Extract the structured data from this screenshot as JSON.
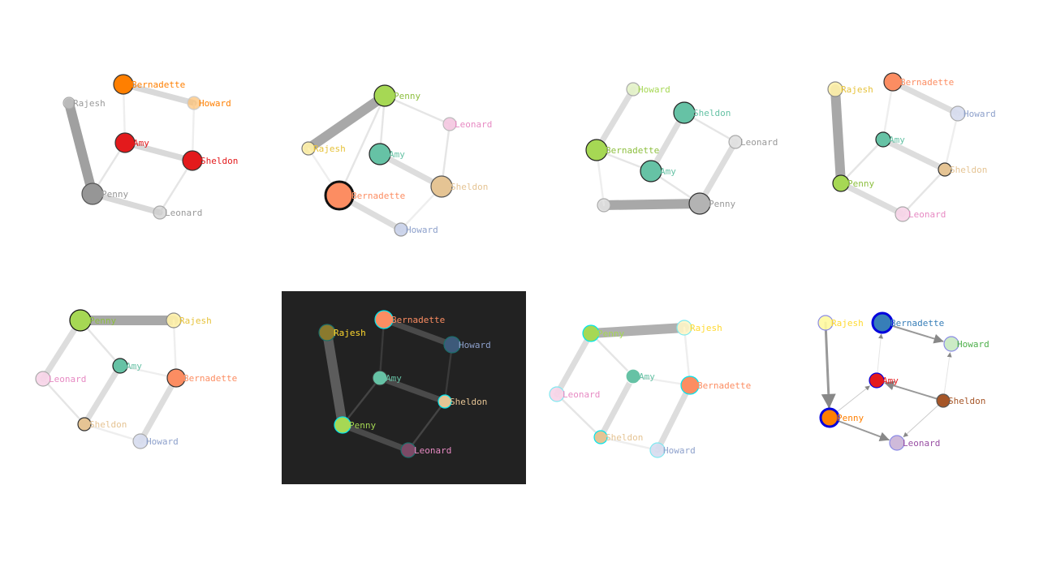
{
  "panels": [
    {
      "name": "panel-1",
      "background": "#ffffff",
      "nodes": [
        {
          "label": "Bernadette",
          "fill": "#ff7f00",
          "label_color": "#ff7f00",
          "opacity": 1.0,
          "stroke": "#333333"
        },
        {
          "label": "Rajesh",
          "fill": "#cccccc",
          "label_color": "#999999",
          "opacity": 0.6,
          "stroke": "#aaaaaa"
        },
        {
          "label": "Howard",
          "fill": "#fdbf6f",
          "label_color": "#ff7f00",
          "opacity": 0.7,
          "stroke": "#cccccc"
        },
        {
          "label": "Amy",
          "fill": "#e31a1c",
          "label_color": "#e31a1c",
          "opacity": 1.0,
          "stroke": "#333333"
        },
        {
          "label": "Sheldon",
          "fill": "#e31a1c",
          "label_color": "#e31a1c",
          "opacity": 1.0,
          "stroke": "#333333"
        },
        {
          "label": "Penny",
          "fill": "#969696",
          "label_color": "#969696",
          "opacity": 1.0,
          "stroke": "#555555"
        },
        {
          "label": "Leonard",
          "fill": "#cccccc",
          "label_color": "#999999",
          "opacity": 0.7,
          "stroke": "#aaaaaa"
        }
      ],
      "edges": [
        {
          "from": "Rajesh",
          "to": "Penny",
          "weight": 5,
          "color": "#a0a0a0"
        },
        {
          "from": "Bernadette",
          "to": "Howard",
          "weight": 3,
          "color": "#d9d9d9"
        },
        {
          "from": "Amy",
          "to": "Sheldon",
          "weight": 3,
          "color": "#d9d9d9"
        },
        {
          "from": "Penny",
          "to": "Leonard",
          "weight": 3,
          "color": "#d9d9d9"
        },
        {
          "from": "Amy",
          "to": "Penny",
          "weight": 1,
          "color": "#e5e5e5"
        },
        {
          "from": "Sheldon",
          "to": "Leonard",
          "weight": 1,
          "color": "#e5e5e5"
        },
        {
          "from": "Bernadette",
          "to": "Amy",
          "weight": 1,
          "color": "#eeeeee"
        },
        {
          "from": "Howard",
          "to": "Sheldon",
          "weight": 1,
          "color": "#eeeeee"
        }
      ]
    },
    {
      "name": "panel-2",
      "background": "#ffffff",
      "nodes": [
        {
          "label": "Penny",
          "fill": "#a6d854",
          "label_color": "#8dbf3f",
          "opacity": 1.0,
          "stroke": "#222222"
        },
        {
          "label": "Leonard",
          "fill": "#f4c6e0",
          "label_color": "#e78ac3",
          "opacity": 0.9,
          "stroke": "#bbbbbb"
        },
        {
          "label": "Rajesh",
          "fill": "#fff1a8",
          "label_color": "#e6c23a",
          "opacity": 0.9,
          "stroke": "#777777"
        },
        {
          "label": "Amy",
          "fill": "#66c2a5",
          "label_color": "#66c2a5",
          "opacity": 1.0,
          "stroke": "#222222"
        },
        {
          "label": "Bernadette",
          "fill": "#fc8d62",
          "label_color": "#fc8d62",
          "opacity": 1.0,
          "stroke": "#111111"
        },
        {
          "label": "Sheldon",
          "fill": "#e5c494",
          "label_color": "#e5c494",
          "opacity": 1.0,
          "stroke": "#555555"
        },
        {
          "label": "Howard",
          "fill": "#c9d2ea",
          "label_color": "#8da0cb",
          "opacity": 0.9,
          "stroke": "#999999"
        }
      ],
      "edges": [
        {
          "from": "Penny",
          "to": "Rajesh",
          "weight": 5,
          "color": "#a8a8a8"
        },
        {
          "from": "Bernadette",
          "to": "Howard",
          "weight": 3,
          "color": "#dddddd"
        },
        {
          "from": "Amy",
          "to": "Sheldon",
          "weight": 3,
          "color": "#dddddd"
        },
        {
          "from": "Penny",
          "to": "Leonard",
          "weight": 1,
          "color": "#e5e5e5"
        },
        {
          "from": "Penny",
          "to": "Amy",
          "weight": 1,
          "color": "#e5e5e5"
        },
        {
          "from": "Leonard",
          "to": "Sheldon",
          "weight": 1,
          "color": "#e5e5e5"
        },
        {
          "from": "Penny",
          "to": "Bernadette",
          "weight": 1,
          "color": "#e5e5e5"
        },
        {
          "from": "Sheldon",
          "to": "Howard",
          "weight": 1,
          "color": "#eeeeee"
        },
        {
          "from": "Rajesh",
          "to": "Bernadette",
          "weight": 1,
          "color": "#eeeeee"
        }
      ]
    },
    {
      "name": "panel-3",
      "background": "#ffffff",
      "nodes": [
        {
          "label": "Howard",
          "fill": "#e3f2c8",
          "label_color": "#a6d854",
          "opacity": 0.9,
          "stroke": "#aaaaaa"
        },
        {
          "label": "Sheldon",
          "fill": "#66c2a5",
          "label_color": "#66c2a5",
          "opacity": 1.0,
          "stroke": "#222222"
        },
        {
          "label": "Leonard",
          "fill": "#e0e0e0",
          "label_color": "#999999",
          "opacity": 0.9,
          "stroke": "#aaaaaa"
        },
        {
          "label": "Bernadette",
          "fill": "#a6d854",
          "label_color": "#8dbf3f",
          "opacity": 1.0,
          "stroke": "#222222"
        },
        {
          "label": "Amy",
          "fill": "#66c2a5",
          "label_color": "#66c2a5",
          "opacity": 1.0,
          "stroke": "#222222"
        },
        {
          "label": "",
          "fill": "#e0e0e0",
          "label_color": "#999999",
          "opacity": 0.9,
          "stroke": "#aaaaaa"
        },
        {
          "label": "Penny",
          "fill": "#b3b3b3",
          "label_color": "#999999",
          "opacity": 1.0,
          "stroke": "#333333"
        }
      ],
      "edges": [
        {
          "from": "",
          "to": "Penny",
          "weight": 5,
          "color": "#a8a8a8"
        },
        {
          "from": "Howard",
          "to": "Bernadette",
          "weight": 3,
          "color": "#dddddd"
        },
        {
          "from": "Sheldon",
          "to": "Amy",
          "weight": 3,
          "color": "#dddddd"
        },
        {
          "from": "Leonard",
          "to": "Penny",
          "weight": 3,
          "color": "#dddddd"
        },
        {
          "from": "Bernadette",
          "to": "Amy",
          "weight": 1,
          "color": "#e5e5e5"
        },
        {
          "from": "Sheldon",
          "to": "Leonard",
          "weight": 1,
          "color": "#e5e5e5"
        },
        {
          "from": "Amy",
          "to": "Penny",
          "weight": 1,
          "color": "#e5e5e5"
        },
        {
          "from": "Bernadette",
          "to": "",
          "weight": 1,
          "color": "#eeeeee"
        }
      ]
    },
    {
      "name": "panel-4",
      "background": "#ffffff",
      "nodes": [
        {
          "label": "Rajesh",
          "fill": "#fff1a8",
          "label_color": "#e6c23a",
          "opacity": 0.9,
          "stroke": "#888888"
        },
        {
          "label": "Bernadette",
          "fill": "#fc8d62",
          "label_color": "#fc8d62",
          "opacity": 1.0,
          "stroke": "#333333"
        },
        {
          "label": "Howard",
          "fill": "#d6dcee",
          "label_color": "#8da0cb",
          "opacity": 0.9,
          "stroke": "#aaaaaa"
        },
        {
          "label": "Amy",
          "fill": "#66c2a5",
          "label_color": "#66c2a5",
          "opacity": 1.0,
          "stroke": "#222222"
        },
        {
          "label": "Sheldon",
          "fill": "#e5c494",
          "label_color": "#e5c494",
          "opacity": 1.0,
          "stroke": "#333333"
        },
        {
          "label": "Penny",
          "fill": "#a6d854",
          "label_color": "#8dbf3f",
          "opacity": 1.0,
          "stroke": "#222222"
        },
        {
          "label": "Leonard",
          "fill": "#f7d4e8",
          "label_color": "#e78ac3",
          "opacity": 0.9,
          "stroke": "#aaaaaa"
        }
      ],
      "edges": [
        {
          "from": "Rajesh",
          "to": "Penny",
          "weight": 5,
          "color": "#a8a8a8"
        },
        {
          "from": "Bernadette",
          "to": "Howard",
          "weight": 3,
          "color": "#dddddd"
        },
        {
          "from": "Amy",
          "to": "Sheldon",
          "weight": 3,
          "color": "#dddddd"
        },
        {
          "from": "Penny",
          "to": "Leonard",
          "weight": 3,
          "color": "#dddddd"
        },
        {
          "from": "Amy",
          "to": "Penny",
          "weight": 1,
          "color": "#e5e5e5"
        },
        {
          "from": "Sheldon",
          "to": "Leonard",
          "weight": 1,
          "color": "#e5e5e5"
        },
        {
          "from": "Bernadette",
          "to": "Amy",
          "weight": 1,
          "color": "#eeeeee"
        },
        {
          "from": "Howard",
          "to": "Sheldon",
          "weight": 1,
          "color": "#eeeeee"
        }
      ]
    },
    {
      "name": "panel-5",
      "background": "#ffffff",
      "nodes": [
        {
          "label": "Penny",
          "fill": "#a6d854",
          "label_color": "#8dbf3f",
          "opacity": 1.0,
          "stroke": "#111111"
        },
        {
          "label": "Rajesh",
          "fill": "#fff1a8",
          "label_color": "#e6c23a",
          "opacity": 0.9,
          "stroke": "#888888"
        },
        {
          "label": "Amy",
          "fill": "#66c2a5",
          "label_color": "#66c2a5",
          "opacity": 1.0,
          "stroke": "#222222"
        },
        {
          "label": "Leonard",
          "fill": "#f7d4e8",
          "label_color": "#e78ac3",
          "opacity": 0.9,
          "stroke": "#aaaaaa"
        },
        {
          "label": "Bernadette",
          "fill": "#fc8d62",
          "label_color": "#fc8d62",
          "opacity": 1.0,
          "stroke": "#333333"
        },
        {
          "label": "Sheldon",
          "fill": "#e5c494",
          "label_color": "#e5c494",
          "opacity": 1.0,
          "stroke": "#333333"
        },
        {
          "label": "Howard",
          "fill": "#d6dcee",
          "label_color": "#8da0cb",
          "opacity": 0.9,
          "stroke": "#aaaaaa"
        }
      ],
      "edges": [
        {
          "from": "Penny",
          "to": "Rajesh",
          "weight": 5,
          "color": "#a8a8a8"
        },
        {
          "from": "Penny",
          "to": "Leonard",
          "weight": 3,
          "color": "#dddddd"
        },
        {
          "from": "Amy",
          "to": "Sheldon",
          "weight": 3,
          "color": "#dddddd"
        },
        {
          "from": "Bernadette",
          "to": "Howard",
          "weight": 3,
          "color": "#dddddd"
        },
        {
          "from": "Penny",
          "to": "Amy",
          "weight": 1,
          "color": "#e5e5e5"
        },
        {
          "from": "Leonard",
          "to": "Sheldon",
          "weight": 1,
          "color": "#e5e5e5"
        },
        {
          "from": "Amy",
          "to": "Bernadette",
          "weight": 1,
          "color": "#eeeeee"
        },
        {
          "from": "Sheldon",
          "to": "Howard",
          "weight": 1,
          "color": "#eeeeee"
        },
        {
          "from": "Rajesh",
          "to": "Bernadette",
          "weight": 1,
          "color": "#eeeeee"
        }
      ]
    },
    {
      "name": "panel-6",
      "background": "#222222",
      "nodes": [
        {
          "label": "Rajesh",
          "fill": "#8a7a2e",
          "label_color": "#ffd92f",
          "opacity": 1.0,
          "stroke": "#1b6e6a"
        },
        {
          "label": "Bernadette",
          "fill": "#fc8d62",
          "label_color": "#fc8d62",
          "opacity": 1.0,
          "stroke": "#00e5ee"
        },
        {
          "label": "Howard",
          "fill": "#3d5a7a",
          "label_color": "#8da0cb",
          "opacity": 1.0,
          "stroke": "#1b6e6a"
        },
        {
          "label": "Amy",
          "fill": "#66c2a5",
          "label_color": "#66c2a5",
          "opacity": 1.0,
          "stroke": "#333333"
        },
        {
          "label": "Sheldon",
          "fill": "#e5c494",
          "label_color": "#e5c494",
          "opacity": 1.0,
          "stroke": "#00e5ee"
        },
        {
          "label": "Penny",
          "fill": "#a6d854",
          "label_color": "#a6d854",
          "opacity": 1.0,
          "stroke": "#00e5ee"
        },
        {
          "label": "Leonard",
          "fill": "#7a4a66",
          "label_color": "#e78ac3",
          "opacity": 1.0,
          "stroke": "#1b6e6a"
        }
      ],
      "edges": [
        {
          "from": "Rajesh",
          "to": "Penny",
          "weight": 5,
          "color": "#5c5c5c"
        },
        {
          "from": "Bernadette",
          "to": "Howard",
          "weight": 3,
          "color": "#4a4a4a"
        },
        {
          "from": "Amy",
          "to": "Sheldon",
          "weight": 3,
          "color": "#4a4a4a"
        },
        {
          "from": "Penny",
          "to": "Leonard",
          "weight": 3,
          "color": "#4a4a4a"
        },
        {
          "from": "Amy",
          "to": "Penny",
          "weight": 1,
          "color": "#444444"
        },
        {
          "from": "Sheldon",
          "to": "Leonard",
          "weight": 1,
          "color": "#444444"
        },
        {
          "from": "Bernadette",
          "to": "Amy",
          "weight": 1,
          "color": "#3a3a3a"
        },
        {
          "from": "Howard",
          "to": "Sheldon",
          "weight": 1,
          "color": "#3a3a3a"
        }
      ]
    },
    {
      "name": "panel-7",
      "background": "#ffffff",
      "nodes": [
        {
          "label": "Penny",
          "fill": "#a6d854",
          "label_color": "#a6d854",
          "opacity": 1.0,
          "stroke": "#00e5ee"
        },
        {
          "label": "Rajesh",
          "fill": "#fff6c8",
          "label_color": "#ffd92f",
          "opacity": 0.9,
          "stroke": "#7fe9f0"
        },
        {
          "label": "Amy",
          "fill": "#66c2a5",
          "label_color": "#66c2a5",
          "opacity": 1.0,
          "stroke": "#ffffff"
        },
        {
          "label": "Leonard",
          "fill": "#f7d4e8",
          "label_color": "#e78ac3",
          "opacity": 0.9,
          "stroke": "#7fe9f0"
        },
        {
          "label": "Bernadette",
          "fill": "#fc8d62",
          "label_color": "#fc8d62",
          "opacity": 1.0,
          "stroke": "#00e5ee"
        },
        {
          "label": "Sheldon",
          "fill": "#e5c494",
          "label_color": "#e5c494",
          "opacity": 1.0,
          "stroke": "#00e5ee"
        },
        {
          "label": "Howard",
          "fill": "#d6dcee",
          "label_color": "#8da0cb",
          "opacity": 0.9,
          "stroke": "#7fe9f0"
        }
      ],
      "edges": [
        {
          "from": "Penny",
          "to": "Rajesh",
          "weight": 5,
          "color": "#b0b0b0"
        },
        {
          "from": "Penny",
          "to": "Leonard",
          "weight": 3,
          "color": "#dddddd"
        },
        {
          "from": "Amy",
          "to": "Sheldon",
          "weight": 3,
          "color": "#dddddd"
        },
        {
          "from": "Bernadette",
          "to": "Howard",
          "weight": 3,
          "color": "#dddddd"
        },
        {
          "from": "Penny",
          "to": "Amy",
          "weight": 1,
          "color": "#e5e5e5"
        },
        {
          "from": "Leonard",
          "to": "Sheldon",
          "weight": 1,
          "color": "#e5e5e5"
        },
        {
          "from": "Amy",
          "to": "Bernadette",
          "weight": 1,
          "color": "#eeeeee"
        },
        {
          "from": "Sheldon",
          "to": "Howard",
          "weight": 1,
          "color": "#eeeeee"
        },
        {
          "from": "Rajesh",
          "to": "Bernadette",
          "weight": 1,
          "color": "#eeeeee"
        }
      ]
    },
    {
      "name": "panel-8",
      "background": "#ffffff",
      "nodes": [
        {
          "label": "Rajesh",
          "fill": "#fffaa0",
          "label_color": "#ffd92f",
          "opacity": 0.9,
          "stroke": "#8a8ae6"
        },
        {
          "label": "Bernadette",
          "fill": "#377eb8",
          "label_color": "#377eb8",
          "opacity": 1.0,
          "stroke": "#0000dd"
        },
        {
          "label": "Howard",
          "fill": "#c7e9c0",
          "label_color": "#4daf4a",
          "opacity": 0.9,
          "stroke": "#8a8ae6"
        },
        {
          "label": "Amy",
          "fill": "#e41a1c",
          "label_color": "#e41a1c",
          "opacity": 1.0,
          "stroke": "#0000dd"
        },
        {
          "label": "Sheldon",
          "fill": "#a65628",
          "label_color": "#a65628",
          "opacity": 1.0,
          "stroke": "#555555"
        },
        {
          "label": "Penny",
          "fill": "#ff7f00",
          "label_color": "#ff7f00",
          "opacity": 1.0,
          "stroke": "#0000dd"
        },
        {
          "label": "Leonard",
          "fill": "#cab2d6",
          "label_color": "#984ea3",
          "opacity": 0.9,
          "stroke": "#8a8ae6"
        }
      ],
      "edges": [
        {
          "from": "Rajesh",
          "to": "Penny",
          "weight": 3,
          "color": "#999999",
          "arrow": true
        },
        {
          "from": "Bernadette",
          "to": "Howard",
          "weight": 2,
          "color": "#999999",
          "arrow": true
        },
        {
          "from": "Sheldon",
          "to": "Amy",
          "weight": 2,
          "color": "#999999",
          "arrow": true
        },
        {
          "from": "Penny",
          "to": "Leonard",
          "weight": 2,
          "color": "#999999",
          "arrow": true
        },
        {
          "from": "Penny",
          "to": "Amy",
          "weight": 1,
          "color": "#cccccc",
          "arrow": true
        },
        {
          "from": "Sheldon",
          "to": "Leonard",
          "weight": 1,
          "color": "#cccccc",
          "arrow": true
        },
        {
          "from": "Amy",
          "to": "Bernadette",
          "weight": 1,
          "color": "#e5e5e5",
          "arrow": true
        },
        {
          "from": "Sheldon",
          "to": "Howard",
          "weight": 1,
          "color": "#e5e5e5",
          "arrow": true
        }
      ]
    }
  ]
}
